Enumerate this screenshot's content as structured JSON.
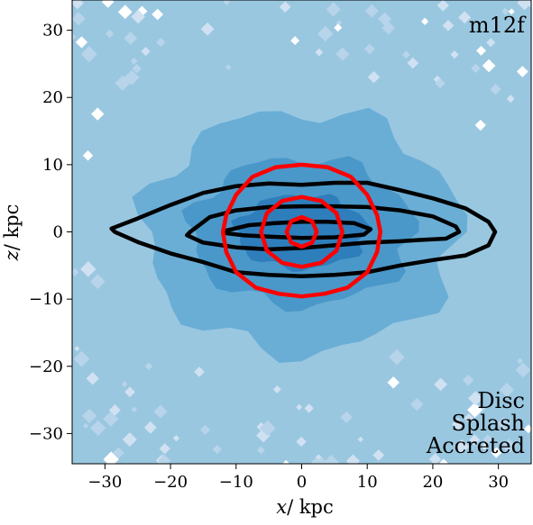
{
  "chart_data": {
    "type": "heatmap",
    "title": "",
    "panel_label": "m12f",
    "xlabel": "x/ kpc",
    "ylabel": "z/ kpc",
    "xlabel_var": "x",
    "xlabel_unit": "/ kpc",
    "ylabel_var": "z",
    "ylabel_unit": "/ kpc",
    "xlim": [
      -35,
      35
    ],
    "ylim": [
      -34.5,
      34.5
    ],
    "xticks": [
      -30,
      -20,
      -10,
      0,
      10,
      20,
      30
    ],
    "yticks": [
      -30,
      -20,
      -10,
      0,
      10,
      20,
      30
    ],
    "xtick_labels": [
      "−30",
      "−20",
      "−10",
      "0",
      "10",
      "20",
      "30"
    ],
    "ytick_labels": [
      "−30",
      "−20",
      "−10",
      "0",
      "10",
      "20",
      "30"
    ],
    "grid": false,
    "legend": {
      "placement": "bottom-right",
      "entries": [
        {
          "label": "Disc",
          "color": "#000000"
        },
        {
          "label": "Splash",
          "color": "#ff0000"
        },
        {
          "label": "Accreted",
          "color": "#0000ff"
        }
      ]
    },
    "background_density": {
      "description_colors": [
        "#ffffff",
        "#d0e1f2",
        "#b7d4ea",
        "#94c4df",
        "#6aaed6",
        "#4a98c9",
        "#2e7ebc"
      ],
      "cmap": "Blues"
    },
    "series": [
      {
        "name": "Disc",
        "color": "#000000",
        "contours": [
          {
            "level": "outer",
            "points": [
              [
                -29,
                0.5
              ],
              [
                -25,
                2
              ],
              [
                -20,
                4
              ],
              [
                -15,
                5.8
              ],
              [
                -10,
                6.8
              ],
              [
                -5,
                7.2
              ],
              [
                0,
                7
              ],
              [
                5,
                7.3
              ],
              [
                10,
                7.3
              ],
              [
                15,
                6.2
              ],
              [
                20,
                5
              ],
              [
                25,
                3.5
              ],
              [
                28.5,
                1.5
              ],
              [
                29.5,
                0
              ],
              [
                28.5,
                -2
              ],
              [
                25,
                -3.5
              ],
              [
                20,
                -4.2
              ],
              [
                15,
                -5
              ],
              [
                10,
                -6
              ],
              [
                5,
                -6.4
              ],
              [
                0,
                -6.6
              ],
              [
                -5,
                -6.4
              ],
              [
                -10,
                -6
              ],
              [
                -15,
                -4.5
              ],
              [
                -20,
                -3.2
              ],
              [
                -25,
                -1.5
              ],
              [
                -28.5,
                0
              ]
            ]
          },
          {
            "level": "middle",
            "points": [
              [
                -17,
                0
              ],
              [
                -14,
                2.2
              ],
              [
                -10,
                3.2
              ],
              [
                -5,
                3.7
              ],
              [
                0,
                3.8
              ],
              [
                5,
                3.8
              ],
              [
                10,
                3.7
              ],
              [
                15,
                3.2
              ],
              [
                20,
                2.3
              ],
              [
                23.5,
                0.8
              ],
              [
                24,
                0
              ],
              [
                22,
                -1
              ],
              [
                18,
                -1.2
              ],
              [
                15,
                -1.4
              ],
              [
                10,
                -1.6
              ],
              [
                5,
                -2
              ],
              [
                0,
                -2.4
              ],
              [
                -5,
                -2.6
              ],
              [
                -10,
                -2.3
              ],
              [
                -15,
                -1.6
              ],
              [
                -17.5,
                -0.5
              ]
            ]
          },
          {
            "level": "inner",
            "points": [
              [
                -11.5,
                0.2
              ],
              [
                -8,
                1
              ],
              [
                -4,
                1.3
              ],
              [
                0,
                1.5
              ],
              [
                4,
                1.5
              ],
              [
                8,
                1.3
              ],
              [
                10.5,
                0.4
              ],
              [
                9.5,
                -0.4
              ],
              [
                5,
                -0.8
              ],
              [
                0,
                -0.9
              ],
              [
                -5,
                -0.7
              ],
              [
                -9,
                -0.5
              ],
              [
                -11.5,
                -0.2
              ]
            ]
          }
        ]
      },
      {
        "name": "Splash",
        "color": "#ff0000",
        "contours": [
          {
            "level": "outer",
            "points": [
              [
                0,
                10
              ],
              [
                4,
                9.6
              ],
              [
                7.5,
                8.2
              ],
              [
                10,
                5.5
              ],
              [
                11.5,
                2.5
              ],
              [
                12,
                0
              ],
              [
                11.5,
                -3
              ],
              [
                10,
                -6
              ],
              [
                7,
                -8.3
              ],
              [
                3.5,
                -9.2
              ],
              [
                0,
                -9.6
              ],
              [
                -3.5,
                -9.2
              ],
              [
                -7,
                -8.3
              ],
              [
                -10,
                -6
              ],
              [
                -11.5,
                -3
              ],
              [
                -12,
                0
              ],
              [
                -11.5,
                2.5
              ],
              [
                -10,
                5.5
              ],
              [
                -7.5,
                8.2
              ],
              [
                -4,
                9.6
              ]
            ]
          },
          {
            "level": "middle",
            "points": [
              [
                0,
                5.2
              ],
              [
                3,
                4.6
              ],
              [
                5.3,
                2.8
              ],
              [
                6.2,
                0
              ],
              [
                5.3,
                -2.8
              ],
              [
                3,
                -4.6
              ],
              [
                0,
                -5.2
              ],
              [
                -3,
                -4.6
              ],
              [
                -5.3,
                -2.8
              ],
              [
                -6.2,
                0
              ],
              [
                -5.3,
                2.8
              ],
              [
                -3,
                4.6
              ]
            ]
          },
          {
            "level": "inner",
            "points": [
              [
                0,
                2.2
              ],
              [
                1.6,
                1.6
              ],
              [
                2.3,
                0
              ],
              [
                1.6,
                -1.6
              ],
              [
                0,
                -2.2
              ],
              [
                -1.6,
                -1.6
              ],
              [
                -2.3,
                0
              ],
              [
                -1.6,
                1.6
              ]
            ]
          }
        ]
      },
      {
        "name": "Accreted",
        "color": "#0000ff",
        "contours": []
      }
    ]
  }
}
